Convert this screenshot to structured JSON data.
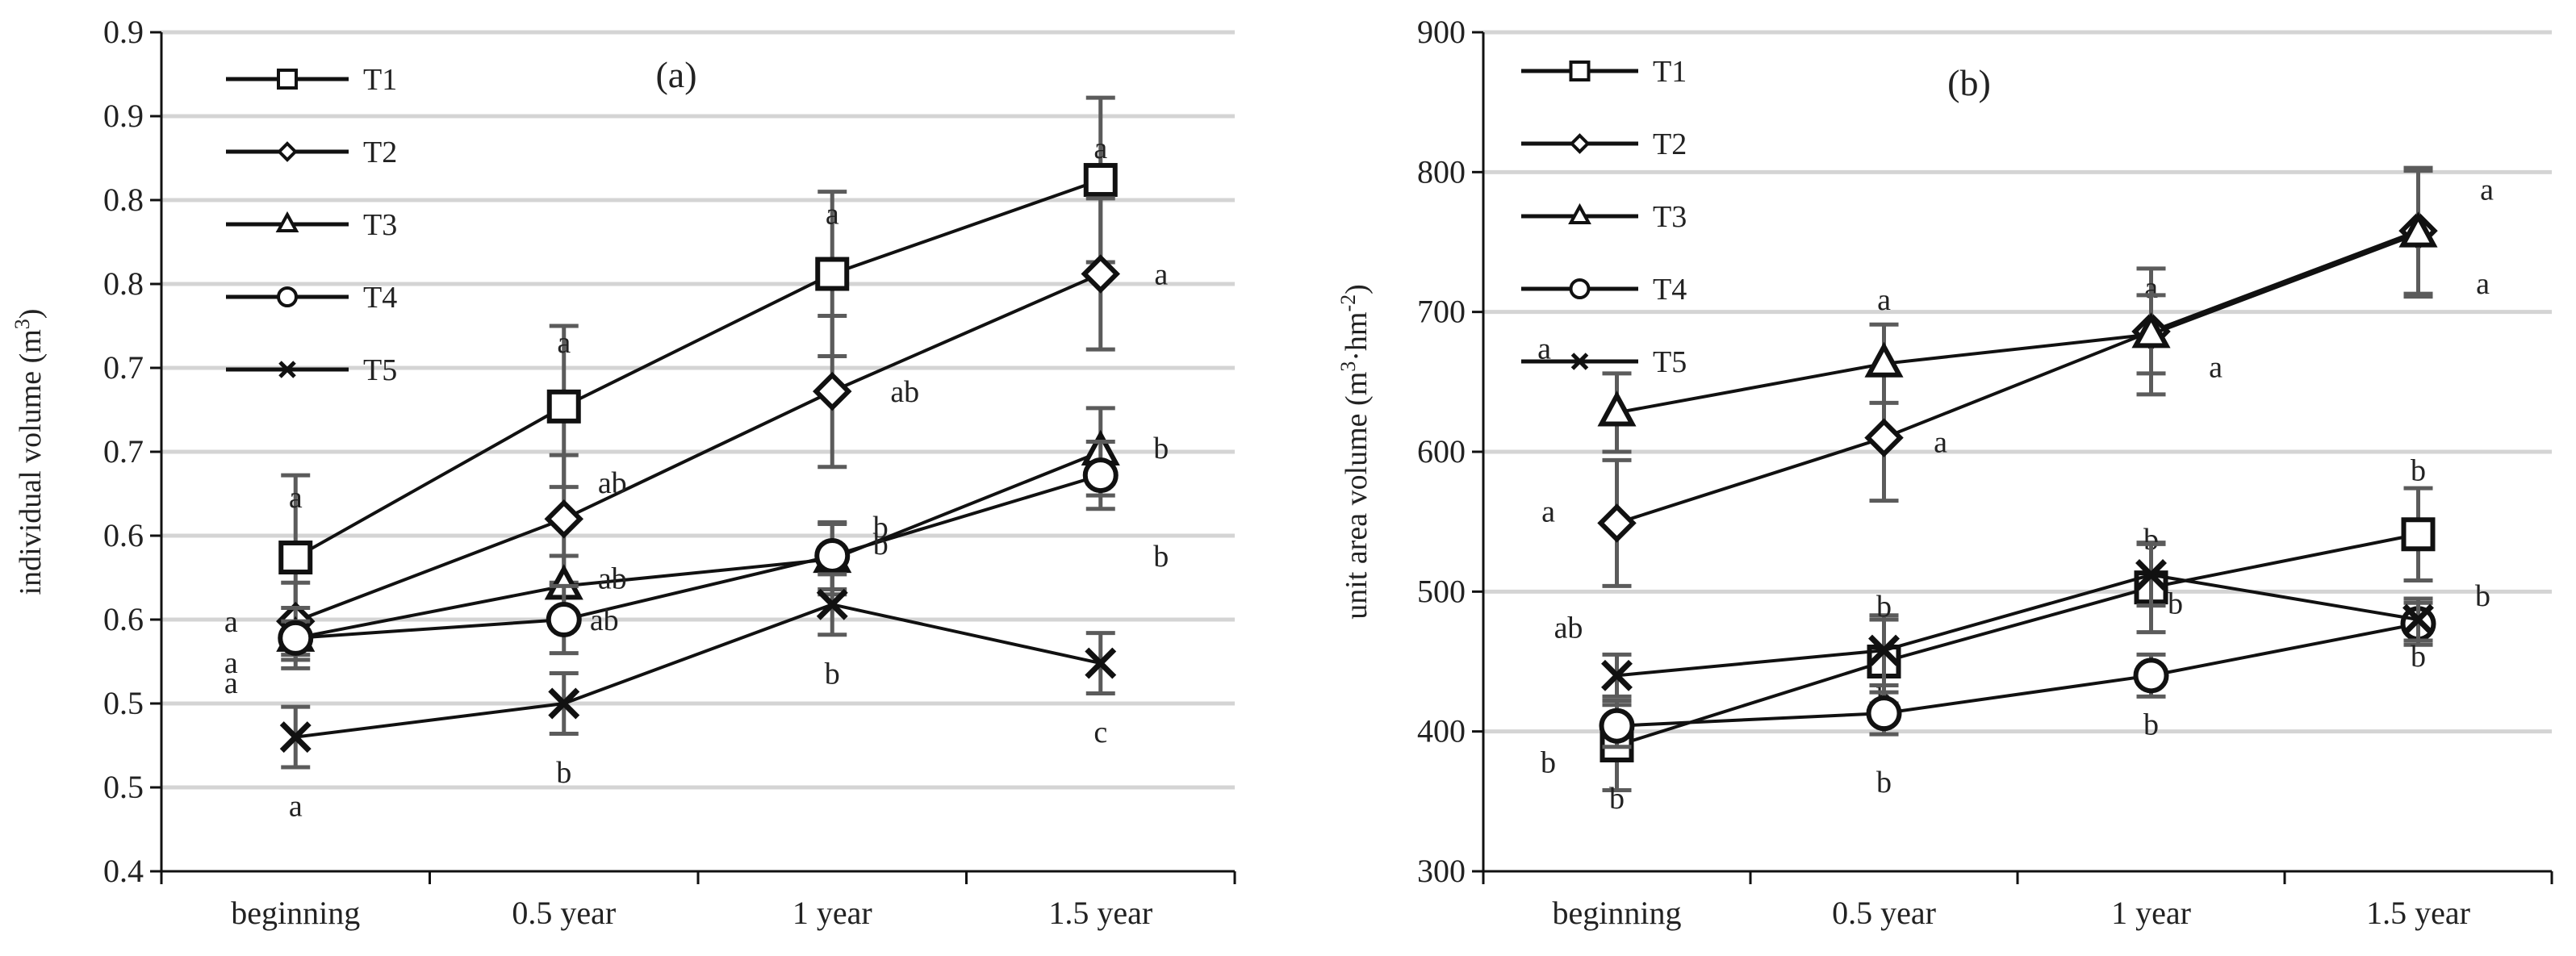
{
  "chart_data": [
    {
      "type": "line",
      "panel_label": "(a)",
      "title": "",
      "xlabel": "",
      "ylabel": "individual volume (m³)",
      "ylabel_main": "individual volume (m",
      "ylabel_sup": "3",
      "ylabel_close": ")",
      "ylim": [
        0.4,
        0.9
      ],
      "y_tick_values": [
        0.4,
        0.45,
        0.5,
        0.55,
        0.6,
        0.65,
        0.7,
        0.75,
        0.8,
        0.85,
        0.9
      ],
      "y_tick_labels": [
        "0.4",
        "0.5",
        "0.5",
        "0.6",
        "0.6",
        "0.7",
        "0.7",
        "0.8",
        "0.8",
        "0.9",
        "0.9"
      ],
      "categories": [
        "beginning",
        "0.5 year",
        "1 year",
        "1.5 year"
      ],
      "grid": true,
      "legend_position": "top-left",
      "series": [
        {
          "name": "T1",
          "marker": "square",
          "values": [
            0.587,
            0.677,
            0.756,
            0.812
          ],
          "errors": [
            0.049,
            0.048,
            0.049,
            0.049
          ],
          "letters": [
            "a",
            "a",
            "a",
            "a"
          ]
        },
        {
          "name": "T2",
          "marker": "diamond",
          "values": [
            0.549,
            0.61,
            0.686,
            0.756
          ],
          "errors": [
            0.023,
            0.038,
            0.045,
            0.045
          ],
          "letters": [
            "a",
            "ab",
            "ab",
            "a"
          ]
        },
        {
          "name": "T3",
          "marker": "triangle",
          "values": [
            0.539,
            0.57,
            0.586,
            0.65
          ],
          "errors": [
            0.018,
            0.018,
            0.021,
            0.026
          ],
          "letters": [
            "a",
            "ab",
            "b",
            "b"
          ]
        },
        {
          "name": "T4",
          "marker": "circle",
          "values": [
            0.539,
            0.55,
            0.588,
            0.636
          ],
          "errors": [
            0.01,
            0.02,
            0.02,
            0.02
          ],
          "letters": [
            "a",
            "ab",
            "b",
            "b"
          ]
        },
        {
          "name": "T5",
          "marker": "x",
          "values": [
            0.48,
            0.5,
            0.559,
            0.524
          ],
          "errors": [
            0.018,
            0.018,
            0.018,
            0.018
          ],
          "letters": [
            "a",
            "b",
            "b",
            "c"
          ]
        }
      ]
    },
    {
      "type": "line",
      "panel_label": "(b)",
      "title": "",
      "xlabel": "",
      "ylabel": "unit area volume (m³·hm⁻²)",
      "ylabel_main": "unit area volume (m",
      "ylabel_sup": "3",
      "ylabel_mid": "·hm",
      "ylabel_sup2": "-2",
      "ylabel_close": ")",
      "ylim": [
        300,
        900
      ],
      "y_tick_values": [
        300,
        400,
        500,
        600,
        700,
        800,
        900
      ],
      "y_tick_labels": [
        "300",
        "400",
        "500",
        "600",
        "700",
        "800",
        "900"
      ],
      "categories": [
        "beginning",
        "0.5 year",
        "1 year",
        "1.5 year"
      ],
      "grid": true,
      "legend_position": "top-left",
      "series": [
        {
          "name": "T1",
          "marker": "square",
          "values": [
            390,
            450,
            503,
            541
          ],
          "errors": [
            32,
            30,
            32,
            33
          ],
          "letters": [
            "b",
            "b",
            "b",
            "b"
          ]
        },
        {
          "name": "T2",
          "marker": "diamond",
          "values": [
            549,
            610,
            686,
            758
          ],
          "errors": [
            45,
            45,
            45,
            45
          ],
          "letters": [
            "a",
            "a",
            "a",
            "a"
          ]
        },
        {
          "name": "T3",
          "marker": "triangle",
          "values": [
            628,
            663,
            684,
            756
          ],
          "errors": [
            28,
            28,
            28,
            45
          ],
          "letters": [
            "a",
            "a",
            "a",
            "a"
          ]
        },
        {
          "name": "T4",
          "marker": "circle",
          "values": [
            404,
            413,
            440,
            477
          ],
          "errors": [
            15,
            15,
            15,
            15
          ],
          "letters": [
            "b",
            "b",
            "b",
            "b"
          ]
        },
        {
          "name": "T5",
          "marker": "x",
          "values": [
            440,
            458,
            512,
            480
          ],
          "errors": [
            15,
            25,
            22,
            15
          ],
          "letters": [
            "ab",
            "b",
            "b",
            "b"
          ]
        }
      ]
    }
  ]
}
